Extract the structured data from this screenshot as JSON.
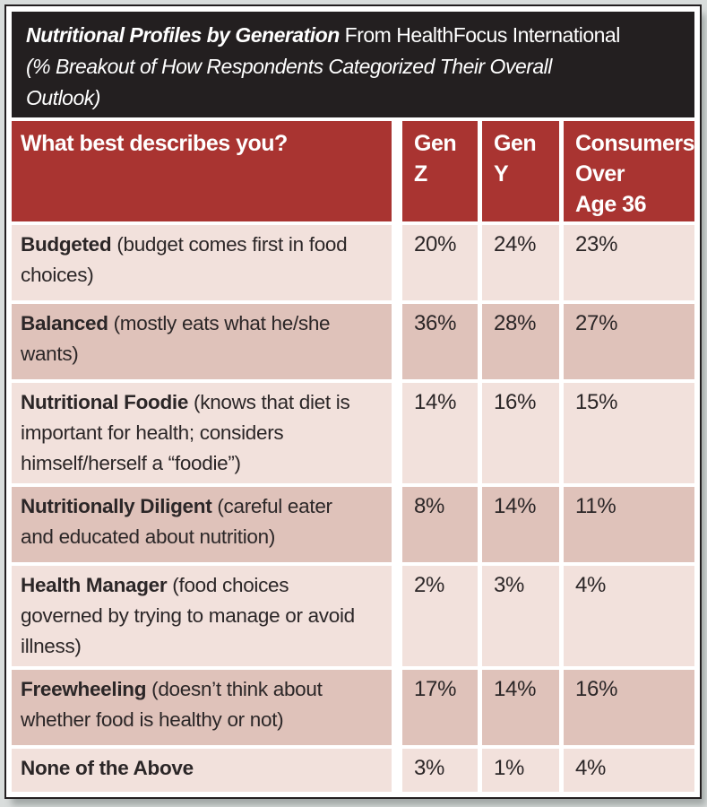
{
  "header": {
    "title_bold": "Nutritional Profiles by Generation",
    "title_regular": " From HealthFocus International",
    "subtitle": "(% Breakout of How Respondents Categorized Their Overall Outlook)"
  },
  "table": {
    "columns": [
      "What best describes you?",
      "Gen Z",
      "Gen Y",
      "Consumers\nOver\nAge 36"
    ],
    "rows": [
      {
        "term": "Budgeted",
        "desc": "(budget comes first in food choices)",
        "values": [
          "20%",
          "24%",
          "23%"
        ]
      },
      {
        "term": "Balanced",
        "desc": "(mostly eats what he/she wants)",
        "values": [
          "36%",
          "28%",
          "27%"
        ]
      },
      {
        "term": "Nutritional Foodie",
        "desc": "(knows that diet is important for health; considers himself/herself a “foodie”)",
        "values": [
          "14%",
          "16%",
          "15%"
        ]
      },
      {
        "term": "Nutritionally Diligent",
        "desc": "(careful eater and educated about nutrition)",
        "values": [
          "8%",
          "14%",
          "11%"
        ]
      },
      {
        "term": "Health Manager",
        "desc": "(food choices governed by trying to manage or avoid illness)",
        "values": [
          "2%",
          "3%",
          "4%"
        ]
      },
      {
        "term": "Freewheeling",
        "desc": "(doesn’t think about whether food is healthy or not)",
        "values": [
          "17%",
          "14%",
          "16%"
        ]
      },
      {
        "term": "None of the Above",
        "desc": "",
        "values": [
          "3%",
          "1%",
          "4%"
        ]
      }
    ]
  },
  "chart_data": {
    "type": "table",
    "title": "Nutritional Profiles by Generation",
    "subtitle": "From HealthFocus International (% Breakout of How Respondents Categorized Their Overall Outlook)",
    "categories": [
      "Budgeted",
      "Balanced",
      "Nutritional Foodie",
      "Nutritionally Diligent",
      "Health Manager",
      "Freewheeling",
      "None of the Above"
    ],
    "series": [
      {
        "name": "Gen Z",
        "values": [
          20,
          36,
          14,
          8,
          2,
          17,
          3
        ]
      },
      {
        "name": "Gen Y",
        "values": [
          24,
          28,
          16,
          14,
          3,
          14,
          1
        ]
      },
      {
        "name": "Consumers Over Age 36",
        "values": [
          23,
          27,
          15,
          11,
          4,
          16,
          4
        ]
      }
    ],
    "unit": "%"
  },
  "colors": {
    "page_bg": "#d9dddc",
    "panel_black": "#231f20",
    "header_red": "#a93431",
    "row_light": "#f2e1dc",
    "row_dark": "#dfc2ba",
    "text_dark": "#2b2627",
    "text_light": "#ffffff"
  }
}
